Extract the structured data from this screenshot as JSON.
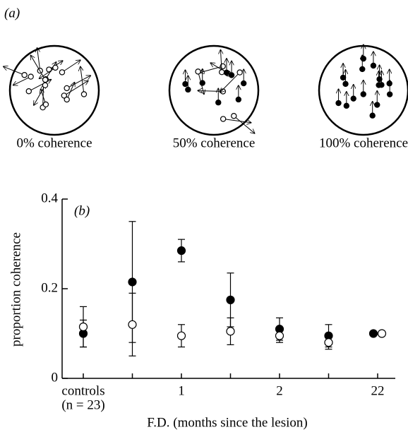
{
  "panel_a": {
    "label": "(a)",
    "captions": [
      "0% coherence",
      "50% coherence",
      "100% coherence"
    ]
  },
  "chart_data": {
    "type": "scatter",
    "panel_label": "(b)",
    "x_label": "F.D. (months since the lesion)",
    "y_label": "proportion coherence",
    "categories": [
      "controls",
      null,
      "1",
      null,
      "2",
      null,
      "22"
    ],
    "annotation": "(n = 23)",
    "ylim": [
      0,
      0.4
    ],
    "yticks": [
      0,
      0.2,
      0.4
    ],
    "series": [
      {
        "name": "filled",
        "color": "#000000",
        "values": [
          0.1,
          0.215,
          0.285,
          0.175,
          0.11,
          0.095,
          0.1
        ],
        "errors": [
          0.03,
          0.135,
          0.025,
          0.06,
          0.025,
          0.025,
          null
        ]
      },
      {
        "name": "open",
        "color": "#ffffff",
        "values": [
          0.115,
          0.12,
          0.095,
          0.105,
          0.095,
          0.08,
          0.1
        ],
        "errors": [
          0.045,
          0.07,
          0.025,
          0.03,
          0.015,
          0.015,
          null
        ]
      }
    ]
  }
}
